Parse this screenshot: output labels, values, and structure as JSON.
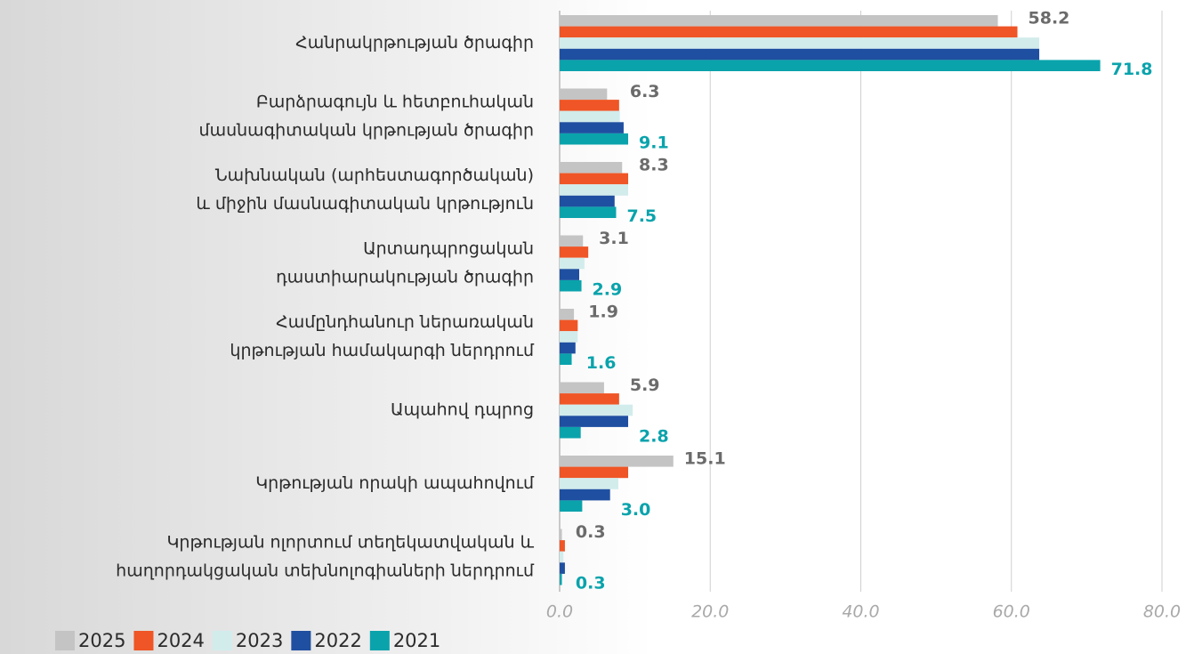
{
  "chart_data": {
    "type": "hbar",
    "categories": [
      [
        "Հանրակրթության ծրագիր"
      ],
      [
        "Բարձրագույն և հետբուհական",
        "մասնագիտական կրթության ծրագիր"
      ],
      [
        "Նախնական (արհեստագործական)",
        "և միջին մասնագիտական կրթություն"
      ],
      [
        "Արտադպրոցական",
        "դաստիարակության ծրագիր"
      ],
      [
        "Համընդհանուր ներառական",
        "կրթության համակարգի ներդրում"
      ],
      [
        "Ապահով դպրոց"
      ],
      [
        "Կրթության որակի ապահովում"
      ],
      [
        "Կրթության ոլորտում տեղեկատվական և",
        "հաղորդակցական տեխնոլոգիաների ներդրում"
      ]
    ],
    "series": [
      {
        "name": "2025",
        "color": "#c4c4c4",
        "values": [
          58.2,
          6.3,
          8.3,
          3.1,
          1.9,
          5.9,
          15.1,
          0.3
        ],
        "value_labels": [
          "58.2",
          "6.3",
          "8.3",
          "3.1",
          "1.9",
          "5.9",
          "15.1",
          "0.3"
        ],
        "label_color": "#6b6b6b"
      },
      {
        "name": "2024",
        "color": "#ef5526",
        "values": [
          60.8,
          7.9,
          9.1,
          3.8,
          2.4,
          7.9,
          9.1,
          0.7
        ]
      },
      {
        "name": "2023",
        "color": "#d2ecec",
        "values": [
          63.7,
          8.0,
          9.1,
          3.3,
          2.4,
          9.7,
          7.8,
          0.5
        ]
      },
      {
        "name": "2022",
        "color": "#1f4fa0",
        "values": [
          63.7,
          8.5,
          7.3,
          2.6,
          2.1,
          9.1,
          6.7,
          0.7
        ]
      },
      {
        "name": "2021",
        "color": "#0aa3ac",
        "values": [
          71.8,
          9.1,
          7.5,
          2.9,
          1.6,
          2.8,
          3.0,
          0.3
        ],
        "value_labels": [
          "71.8",
          "9.1",
          "7.5",
          "2.9",
          "1.6",
          "2.8",
          "3.0",
          "0.3"
        ],
        "label_color": "#0aa3ac"
      }
    ],
    "xlim": [
      0,
      80
    ],
    "xticks": [
      {
        "value": 0,
        "label": "0.0"
      },
      {
        "value": 20,
        "label": "20.0"
      },
      {
        "value": 40,
        "label": "40.0"
      },
      {
        "value": 60,
        "label": "60.0"
      },
      {
        "value": 80,
        "label": "80.0"
      }
    ],
    "grid": true
  }
}
